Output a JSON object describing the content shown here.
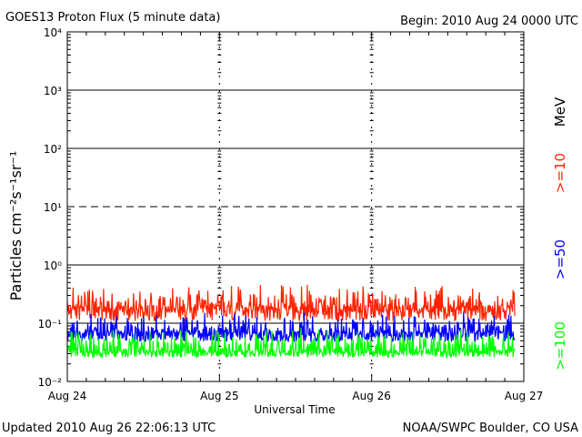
{
  "header": {
    "title": "GOES13 Proton Flux (5 minute data)",
    "begin": "Begin: 2010 Aug 24 0000 UTC"
  },
  "footer": {
    "updated": "Updated 2010 Aug 26 22:06:13 UTC",
    "credit": "NOAA/SWPC Boulder, CO USA"
  },
  "chart_data": {
    "type": "line",
    "title": "GOES13 Proton Flux (5 minute data)",
    "xlabel": "Universal Time",
    "ylabel": "Particles cm⁻²s⁻¹sr⁻¹",
    "yscale": "log",
    "ylim": [
      0.01,
      10000
    ],
    "xlim_days": [
      0,
      3
    ],
    "x_ticks": [
      "Aug 24",
      "Aug 25",
      "Aug 26",
      "Aug 27"
    ],
    "y_ticks": [
      "10⁻²",
      "10⁻¹",
      "10⁰",
      "10¹",
      "10²",
      "10³",
      "10⁴"
    ],
    "y_tick_values": [
      0.01,
      0.1,
      1,
      10,
      100,
      1000,
      10000
    ],
    "threshold_lines": [
      {
        "value": 10,
        "style": "dashed"
      },
      {
        "value": 1,
        "style": "solid"
      },
      {
        "value": 100,
        "style": "solid"
      },
      {
        "value": 1000,
        "style": "solid"
      },
      {
        "value": 0.1,
        "style": "solid"
      }
    ],
    "unit_label": "MeV",
    "series": [
      {
        "name": ">=10",
        "color": "#ff2200",
        "min": 0.1,
        "max": 0.5,
        "typical": 0.15
      },
      {
        "name": ">=50",
        "color": "#0000ff",
        "min": 0.045,
        "max": 0.16,
        "typical": 0.06
      },
      {
        "name": ">=100",
        "color": "#00ff00",
        "min": 0.025,
        "max": 0.09,
        "typical": 0.03
      }
    ]
  }
}
